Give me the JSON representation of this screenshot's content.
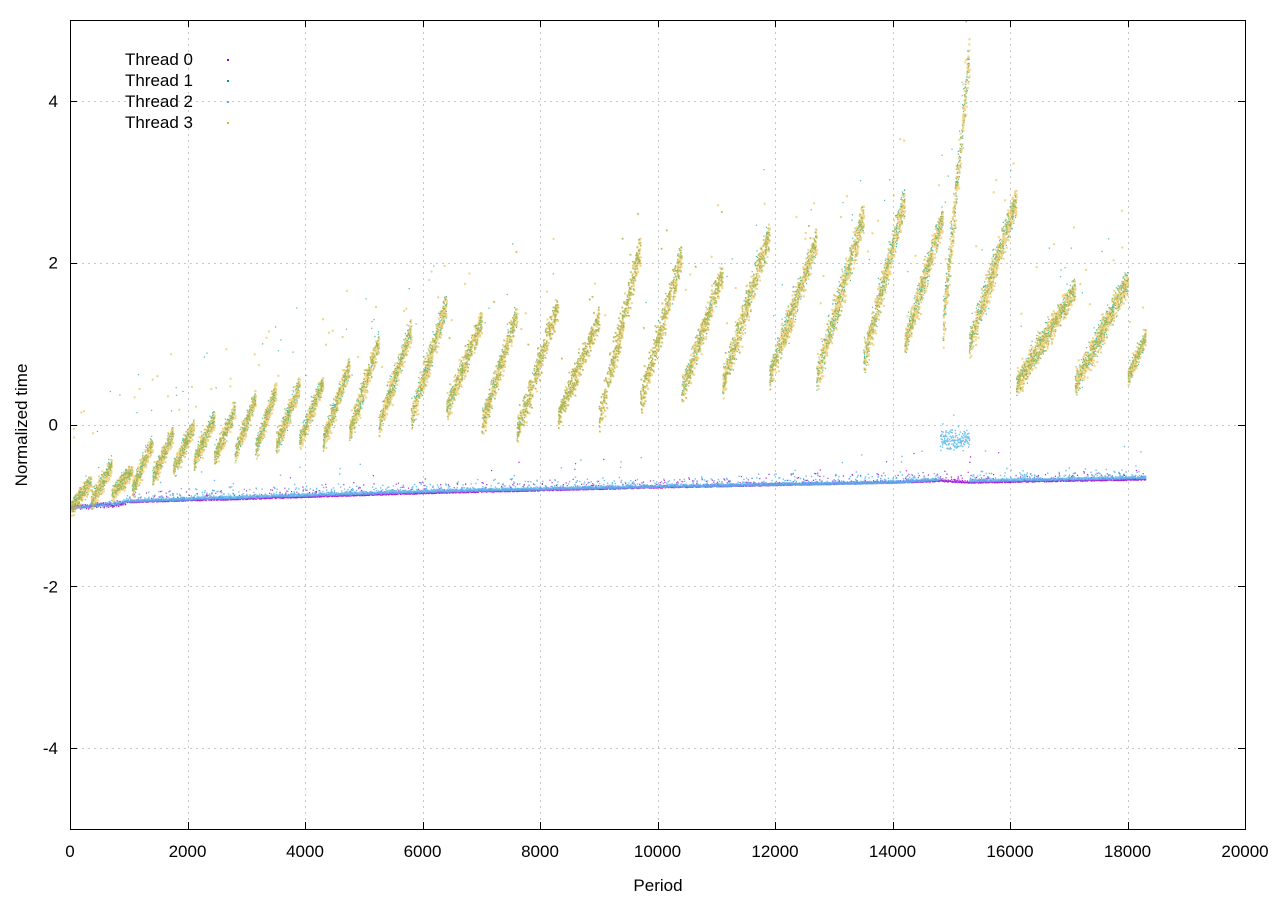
{
  "chart_data": {
    "type": "scatter",
    "title": "",
    "xlabel": "Period",
    "ylabel": "Normalized time",
    "xlim": [
      0,
      20000
    ],
    "ylim": [
      -5,
      5
    ],
    "xticks": [
      0,
      2000,
      4000,
      6000,
      8000,
      10000,
      12000,
      14000,
      16000,
      18000,
      20000
    ],
    "yticks": [
      -4,
      -2,
      0,
      2,
      4
    ],
    "xtick_labels": [
      "0",
      "2000",
      "4000",
      "6000",
      "8000",
      "10000",
      "12000",
      "14000",
      "16000",
      "18000",
      "20000"
    ],
    "ytick_labels": [
      "-4",
      "-2",
      "0",
      "2",
      "4"
    ],
    "grid": true,
    "legend_position": "top-left",
    "series": [
      {
        "name": "Thread 0",
        "color": "#9400d3",
        "trend": [
          [
            0,
            -1.02
          ],
          [
            1000,
            -0.96
          ],
          [
            3000,
            -0.92
          ],
          [
            6000,
            -0.85
          ],
          [
            10000,
            -0.78
          ],
          [
            14000,
            -0.72
          ],
          [
            14800,
            -0.7
          ],
          [
            15300,
            -0.72
          ],
          [
            18300,
            -0.68
          ]
        ]
      },
      {
        "name": "Thread 1",
        "color": "#009e73",
        "cycles": [
          [
            0,
            -1.02,
            350,
            -0.7
          ],
          [
            350,
            -0.95,
            700,
            -0.5
          ],
          [
            700,
            -0.85,
            1050,
            -0.55
          ],
          [
            1050,
            -0.8,
            1400,
            -0.2
          ],
          [
            1400,
            -0.65,
            1750,
            -0.1
          ],
          [
            1750,
            -0.55,
            2100,
            0.0
          ],
          [
            2100,
            -0.45,
            2450,
            0.1
          ],
          [
            2450,
            -0.4,
            2800,
            0.2
          ],
          [
            2800,
            -0.35,
            3150,
            0.35
          ],
          [
            3150,
            -0.3,
            3500,
            0.45
          ],
          [
            3500,
            -0.25,
            3900,
            0.5
          ],
          [
            3900,
            -0.2,
            4300,
            0.55
          ],
          [
            4300,
            -0.2,
            4750,
            0.75
          ],
          [
            4750,
            -0.1,
            5250,
            1.05
          ],
          [
            5250,
            0.0,
            5800,
            1.2
          ],
          [
            5800,
            0.1,
            6400,
            1.5
          ],
          [
            6400,
            0.2,
            7000,
            1.3
          ],
          [
            7000,
            0.0,
            7600,
            1.4
          ],
          [
            7600,
            -0.1,
            8300,
            1.5
          ],
          [
            8300,
            0.1,
            9000,
            1.35
          ],
          [
            9000,
            0.1,
            9700,
            2.2
          ],
          [
            9700,
            0.3,
            10400,
            2.1
          ],
          [
            10400,
            0.4,
            11100,
            1.9
          ],
          [
            11100,
            0.5,
            11900,
            2.4
          ],
          [
            11900,
            0.6,
            12700,
            2.3
          ],
          [
            12700,
            0.6,
            13500,
            2.6
          ],
          [
            13500,
            0.8,
            14200,
            2.8
          ],
          [
            14200,
            1.0,
            14850,
            2.6
          ],
          [
            14850,
            1.2,
            15300,
            4.6
          ],
          [
            15300,
            1.0,
            16100,
            2.8
          ],
          [
            16100,
            0.5,
            17100,
            1.7
          ],
          [
            17100,
            0.5,
            18000,
            1.8
          ],
          [
            18000,
            0.6,
            18300,
            1.1
          ]
        ]
      },
      {
        "name": "Thread 2",
        "color": "#56b4e9",
        "trend": [
          [
            0,
            -1.02
          ],
          [
            1000,
            -0.95
          ],
          [
            3000,
            -0.9
          ],
          [
            6000,
            -0.83
          ],
          [
            10000,
            -0.77
          ],
          [
            14000,
            -0.72
          ],
          [
            14800,
            -0.68
          ],
          [
            15300,
            -0.7
          ],
          [
            18300,
            -0.66
          ]
        ],
        "bump": [
          14800,
          15300,
          -0.2
        ]
      },
      {
        "name": "Thread 3",
        "color": "#e6b023",
        "cycles": [
          [
            0,
            -1.02,
            350,
            -0.7
          ],
          [
            350,
            -0.95,
            700,
            -0.5
          ],
          [
            700,
            -0.85,
            1050,
            -0.55
          ],
          [
            1050,
            -0.8,
            1400,
            -0.2
          ],
          [
            1400,
            -0.65,
            1750,
            -0.1
          ],
          [
            1750,
            -0.55,
            2100,
            0.0
          ],
          [
            2100,
            -0.45,
            2450,
            0.1
          ],
          [
            2450,
            -0.4,
            2800,
            0.2
          ],
          [
            2800,
            -0.35,
            3150,
            0.35
          ],
          [
            3150,
            -0.3,
            3500,
            0.45
          ],
          [
            3500,
            -0.25,
            3900,
            0.5
          ],
          [
            3900,
            -0.2,
            4300,
            0.55
          ],
          [
            4300,
            -0.2,
            4750,
            0.75
          ],
          [
            4750,
            -0.1,
            5250,
            1.05
          ],
          [
            5250,
            0.0,
            5800,
            1.2
          ],
          [
            5800,
            0.1,
            6400,
            1.5
          ],
          [
            6400,
            0.2,
            7000,
            1.3
          ],
          [
            7000,
            0.0,
            7600,
            1.4
          ],
          [
            7600,
            -0.1,
            8300,
            1.5
          ],
          [
            8300,
            0.1,
            9000,
            1.35
          ],
          [
            9000,
            0.1,
            9700,
            2.2
          ],
          [
            9700,
            0.3,
            10400,
            2.1
          ],
          [
            10400,
            0.4,
            11100,
            1.9
          ],
          [
            11100,
            0.5,
            11900,
            2.4
          ],
          [
            11900,
            0.6,
            12700,
            2.3
          ],
          [
            12700,
            0.6,
            13500,
            2.6
          ],
          [
            13500,
            0.8,
            14200,
            2.8
          ],
          [
            14200,
            1.0,
            14850,
            2.6
          ],
          [
            14850,
            1.2,
            15300,
            4.6
          ],
          [
            15300,
            1.0,
            16100,
            2.8
          ],
          [
            16100,
            0.5,
            17100,
            1.7
          ],
          [
            17100,
            0.5,
            18000,
            1.8
          ],
          [
            18000,
            0.6,
            18300,
            1.1
          ]
        ]
      }
    ]
  }
}
